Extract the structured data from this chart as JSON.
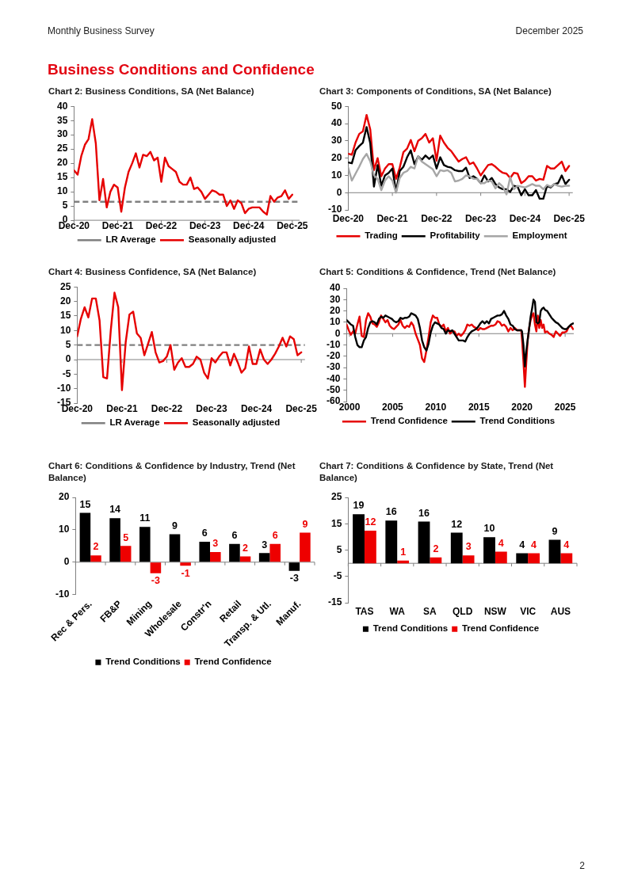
{
  "chart_data": [
    {
      "type": "line",
      "title": "Chart 2: Business Conditions, SA (Net Balance)",
      "annotations": [
        "Monthly Business Survey",
        "December 2025",
        "Business Conditions and Confidence"
      ],
      "x": [
        "2020-12",
        "2021-01",
        "2021-02",
        "2021-03",
        "2021-04",
        "2021-05",
        "2021-06",
        "2021-07",
        "2021-08",
        "2021-09",
        "2021-10",
        "2021-11",
        "2021-12",
        "2022-01",
        "2022-02",
        "2022-03",
        "2022-04",
        "2022-05",
        "2022-06",
        "2022-07",
        "2022-08",
        "2022-09",
        "2022-10",
        "2022-11",
        "2022-12",
        "2023-01",
        "2023-02",
        "2023-03",
        "2023-04",
        "2023-05",
        "2023-06",
        "2023-07",
        "2023-08",
        "2023-09",
        "2023-10",
        "2023-11",
        "2023-12",
        "2024-01",
        "2024-02",
        "2024-03",
        "2024-04",
        "2024-05",
        "2024-06",
        "2024-07",
        "2024-08",
        "2024-09",
        "2024-10",
        "2024-11",
        "2024-12",
        "2025-01",
        "2025-02",
        "2025-03",
        "2025-04",
        "2025-05",
        "2025-06",
        "2025-07",
        "2025-08",
        "2025-09",
        "2025-10",
        "2025-11",
        "2025-12"
      ],
      "xlim": [
        "2020-12",
        "2026-02"
      ],
      "xticks": [
        {
          "value": "2020-12",
          "label": "Dec-20"
        },
        {
          "value": "2021-12",
          "label": "Dec-21"
        },
        {
          "value": "2022-12",
          "label": "Dec-22"
        },
        {
          "value": "2023-12",
          "label": "Dec-23"
        },
        {
          "value": "2024-12",
          "label": "Dec-24"
        },
        {
          "value": "2025-12",
          "label": "Dec-25"
        }
      ],
      "ylim": [
        0,
        40
      ],
      "yticks": [
        0,
        5,
        10,
        15,
        20,
        25,
        30,
        35,
        40
      ],
      "series": [
        {
          "name": "Seasonally adjusted",
          "color": "#e60000",
          "values": [
            17.5,
            16,
            22.5,
            26.5,
            28.5,
            35.5,
            27,
            7,
            14.5,
            4.5,
            10,
            12.5,
            11.5,
            3,
            11.5,
            17,
            20,
            23.5,
            18.5,
            23,
            22.5,
            24,
            21,
            22,
            13.5,
            22,
            19,
            18,
            17,
            13.5,
            12.5,
            12.5,
            15,
            11,
            11.5,
            10,
            7.5,
            9,
            10.5,
            10,
            9,
            9,
            5,
            7,
            4,
            7,
            6,
            2.5,
            4,
            4.5,
            4.5,
            4.5,
            3,
            2,
            8.5,
            6.5,
            8,
            8.5,
            10.5,
            7.5,
            9
          ]
        }
      ],
      "ref_lines": [
        {
          "axis": "y",
          "value": 6.5,
          "label": "LR Average",
          "color": "#808080",
          "line_style": "dashed"
        }
      ],
      "legend": "bottom"
    },
    {
      "type": "line",
      "title": "Chart 3: Components of Conditions,  SA (Net Balance)",
      "x": [
        "2020-12",
        "2021-01",
        "2021-02",
        "2021-03",
        "2021-04",
        "2021-05",
        "2021-06",
        "2021-07",
        "2021-08",
        "2021-09",
        "2021-10",
        "2021-11",
        "2021-12",
        "2022-01",
        "2022-02",
        "2022-03",
        "2022-04",
        "2022-05",
        "2022-06",
        "2022-07",
        "2022-08",
        "2022-09",
        "2022-10",
        "2022-11",
        "2022-12",
        "2023-01",
        "2023-02",
        "2023-03",
        "2023-04",
        "2023-05",
        "2023-06",
        "2023-07",
        "2023-08",
        "2023-09",
        "2023-10",
        "2023-11",
        "2023-12",
        "2024-01",
        "2024-02",
        "2024-03",
        "2024-04",
        "2024-05",
        "2024-06",
        "2024-07",
        "2024-08",
        "2024-09",
        "2024-10",
        "2024-11",
        "2024-12",
        "2025-01",
        "2025-02",
        "2025-03",
        "2025-04",
        "2025-05",
        "2025-06",
        "2025-07",
        "2025-08",
        "2025-09",
        "2025-10",
        "2025-11",
        "2025-12"
      ],
      "xlim": [
        "2020-12",
        "2026-01"
      ],
      "xticks": [
        {
          "value": "2020-12",
          "label": "Dec-20"
        },
        {
          "value": "2021-12",
          "label": "Dec-21"
        },
        {
          "value": "2022-12",
          "label": "Dec-22"
        },
        {
          "value": "2023-12",
          "label": "Dec-23"
        },
        {
          "value": "2024-12",
          "label": "Dec-24"
        },
        {
          "value": "2025-12",
          "label": "Dec-25"
        }
      ],
      "ylim": [
        -10,
        50
      ],
      "yticks": [
        -10,
        0,
        10,
        20,
        30,
        40,
        50
      ],
      "series": [
        {
          "name": "Trading",
          "color": "#e60000",
          "values": [
            22.5,
            22,
            29,
            34,
            35.5,
            45,
            36.5,
            13,
            20,
            9.5,
            14,
            16.5,
            16.5,
            8,
            14.5,
            23.5,
            25.5,
            30.5,
            24,
            30,
            31.5,
            34,
            29,
            31.5,
            18.5,
            33,
            29,
            26,
            24,
            21,
            18,
            19.5,
            20.5,
            16.5,
            17.5,
            14,
            10,
            13,
            16,
            16.5,
            15,
            13,
            11.5,
            11,
            8.5,
            11.5,
            11,
            5.5,
            7,
            9.5,
            9.5,
            7,
            8,
            7.5,
            15.5,
            14,
            14,
            16,
            18,
            12.5,
            15.5
          ]
        },
        {
          "name": "Profitability",
          "color": "#000000",
          "values": [
            17.5,
            17,
            24.5,
            27,
            29,
            38,
            28.5,
            3.5,
            16,
            4,
            10,
            11.5,
            14,
            0.5,
            12.5,
            15,
            20.5,
            24.5,
            16.5,
            21,
            19,
            21.5,
            19.5,
            21.5,
            14,
            20.5,
            16,
            15,
            14.5,
            13,
            12.5,
            12.5,
            14.5,
            8.5,
            9.5,
            8,
            5.5,
            10,
            6.5,
            8.5,
            5,
            3,
            2,
            2,
            0.5,
            4,
            3.5,
            -1.5,
            2,
            -1.5,
            -1.5,
            1.5,
            -3.5,
            -3.5,
            4,
            3,
            5,
            5.5,
            10,
            5,
            7.5
          ]
        },
        {
          "name": "Employment",
          "color": "#a6a6a6",
          "values": [
            14.5,
            7,
            11,
            15,
            19.5,
            22.5,
            18,
            10,
            8,
            1.5,
            7,
            9.5,
            7,
            0,
            8.5,
            11.5,
            12.5,
            15,
            14,
            21,
            18,
            16.5,
            15,
            13.5,
            9.5,
            13,
            12.5,
            13,
            11.5,
            6.5,
            7,
            8,
            10,
            9.5,
            8,
            8,
            5.5,
            5.5,
            7,
            6.5,
            2.5,
            5.5,
            3.5,
            -1,
            9,
            2,
            4,
            3.5,
            3,
            4,
            5,
            4,
            4,
            2,
            4.5,
            3.5,
            5,
            4,
            3.5,
            4,
            4
          ]
        }
      ],
      "legend": "bottom"
    },
    {
      "type": "line",
      "title": "Chart 4: Business Confidence, SA (Net Balance)",
      "x": [
        "2020-12",
        "2021-01",
        "2021-02",
        "2021-03",
        "2021-04",
        "2021-05",
        "2021-06",
        "2021-07",
        "2021-08",
        "2021-09",
        "2021-10",
        "2021-11",
        "2021-12",
        "2022-01",
        "2022-02",
        "2022-03",
        "2022-04",
        "2022-05",
        "2022-06",
        "2022-07",
        "2022-08",
        "2022-09",
        "2022-10",
        "2022-11",
        "2022-12",
        "2023-01",
        "2023-02",
        "2023-03",
        "2023-04",
        "2023-05",
        "2023-06",
        "2023-07",
        "2023-08",
        "2023-09",
        "2023-10",
        "2023-11",
        "2023-12",
        "2024-01",
        "2024-02",
        "2024-03",
        "2024-04",
        "2024-05",
        "2024-06",
        "2024-07",
        "2024-08",
        "2024-09",
        "2024-10",
        "2024-11",
        "2024-12",
        "2025-01",
        "2025-02",
        "2025-03",
        "2025-04",
        "2025-05",
        "2025-06",
        "2025-07",
        "2025-08",
        "2025-09",
        "2025-10",
        "2025-11",
        "2025-12"
      ],
      "xlim": [
        "2020-12",
        "2026-01"
      ],
      "xticks": [
        {
          "value": "2020-12",
          "label": "Dec-20"
        },
        {
          "value": "2021-12",
          "label": "Dec-21"
        },
        {
          "value": "2022-12",
          "label": "Dec-22"
        },
        {
          "value": "2023-12",
          "label": "Dec-23"
        },
        {
          "value": "2024-12",
          "label": "Dec-24"
        },
        {
          "value": "2025-12",
          "label": "Dec-25"
        }
      ],
      "ylim": [
        -15,
        25
      ],
      "yticks": [
        -15,
        -10,
        -5,
        0,
        5,
        10,
        15,
        20,
        25
      ],
      "series": [
        {
          "name": "Seasonally adjusted",
          "color": "#e60000",
          "values": [
            8,
            14,
            18,
            14.5,
            21,
            21,
            13.5,
            -6,
            -6.5,
            10,
            23,
            18,
            -10.5,
            6,
            15.5,
            16.5,
            9,
            7.5,
            1.5,
            5.5,
            9.5,
            2.5,
            -1,
            -0.5,
            1,
            5,
            -3.5,
            -1,
            0.5,
            -2.5,
            -2.5,
            -1.5,
            1,
            0,
            -4.5,
            -6.5,
            0.5,
            -1,
            1,
            2.5,
            2.5,
            -2,
            2,
            -1,
            -4.5,
            -3,
            4.5,
            -1.5,
            -1.5,
            3.5,
            0,
            -1.5,
            0,
            2,
            4.5,
            7.5,
            4.5,
            8,
            7,
            1.5,
            2.5
          ]
        }
      ],
      "ref_lines": [
        {
          "axis": "y",
          "value": 5,
          "label": "LR Average",
          "color": "#808080",
          "line_style": "dashed"
        }
      ],
      "legend": "bottom"
    },
    {
      "type": "line",
      "title": "Chart 5: Conditions & Confidence, Trend (Net Balance)",
      "x": [
        "1999-09",
        "1999-12",
        "2000-03",
        "2000-06",
        "2000-09",
        "2000-12",
        "2001-03",
        "2001-06",
        "2001-09",
        "2001-12",
        "2002-03",
        "2002-06",
        "2002-09",
        "2002-12",
        "2003-03",
        "2003-06",
        "2003-09",
        "2003-12",
        "2004-03",
        "2004-06",
        "2004-09",
        "2004-12",
        "2005-03",
        "2005-06",
        "2005-09",
        "2005-12",
        "2006-03",
        "2006-06",
        "2006-09",
        "2006-12",
        "2007-03",
        "2007-06",
        "2007-09",
        "2007-12",
        "2008-03",
        "2008-06",
        "2008-09",
        "2008-12",
        "2009-03",
        "2009-06",
        "2009-09",
        "2009-12",
        "2010-03",
        "2010-06",
        "2010-09",
        "2010-12",
        "2011-03",
        "2011-06",
        "2011-09",
        "2011-12",
        "2012-03",
        "2012-06",
        "2012-09",
        "2012-12",
        "2013-03",
        "2013-06",
        "2013-09",
        "2013-12",
        "2014-03",
        "2014-06",
        "2014-09",
        "2014-12",
        "2015-03",
        "2015-06",
        "2015-09",
        "2015-12",
        "2016-03",
        "2016-06",
        "2016-09",
        "2016-12",
        "2017-03",
        "2017-06",
        "2017-09",
        "2017-12",
        "2018-03",
        "2018-06",
        "2018-09",
        "2018-12",
        "2019-03",
        "2019-06",
        "2019-09",
        "2019-12",
        "2020-01",
        "2020-03",
        "2020-05",
        "2020-07",
        "2020-09",
        "2020-11",
        "2021-01",
        "2021-03",
        "2021-05",
        "2021-07",
        "2021-09",
        "2021-11",
        "2022-01",
        "2022-03",
        "2022-05",
        "2022-07",
        "2022-09",
        "2022-12",
        "2023-03",
        "2023-06",
        "2023-09",
        "2023-12",
        "2024-03",
        "2024-06",
        "2024-09",
        "2024-12",
        "2025-03",
        "2025-06",
        "2025-09",
        "2025-12"
      ],
      "xlim": [
        "1999-09",
        "2026-01"
      ],
      "xticks": [
        "2000",
        "2005",
        "2010",
        "2015",
        "2020",
        "2025"
      ],
      "ylim": [
        -60,
        40
      ],
      "yticks": [
        -60,
        -50,
        -40,
        -30,
        -20,
        -10,
        0,
        10,
        20,
        30,
        40
      ],
      "series": [
        {
          "name": "Trend Confidence",
          "color": "#e60000",
          "values": [
            8,
            3,
            -1,
            2,
            0,
            8,
            15,
            -2,
            -3,
            12,
            18,
            15,
            9,
            8,
            6,
            10,
            16,
            13,
            10,
            12,
            7,
            5,
            4,
            6,
            8,
            12,
            7,
            5,
            7,
            6,
            10,
            7,
            0,
            -5,
            -10,
            -22,
            -25,
            -15,
            -3,
            10,
            16,
            14,
            14,
            8,
            6,
            8,
            2,
            5,
            0,
            2,
            2,
            -2,
            0,
            -2,
            0,
            3,
            8,
            7,
            8,
            6,
            5,
            3,
            5,
            4,
            4,
            5,
            6,
            7,
            7,
            8,
            11,
            10,
            7,
            8,
            6,
            2,
            5,
            3,
            5,
            3,
            3,
            3,
            -5,
            -25,
            -47,
            -25,
            -5,
            5,
            12,
            16,
            18,
            8,
            2,
            16,
            5,
            12,
            5,
            8,
            1,
            2,
            0,
            -1,
            -3,
            2,
            0,
            -2,
            1,
            1,
            2,
            6,
            7,
            4
          ]
        },
        {
          "name": "Trend Conditions",
          "color": "#000000",
          "values": [
            12,
            10,
            8,
            7,
            -3,
            -10,
            -12,
            -12,
            -6,
            -3,
            5,
            10,
            11,
            10,
            8,
            13,
            15,
            14,
            16,
            15,
            14,
            13,
            11,
            10,
            11,
            14,
            13,
            14,
            14,
            15,
            18,
            17,
            16,
            13,
            5,
            -6,
            -12,
            -15,
            -9,
            1,
            7,
            10,
            9,
            8,
            5,
            4,
            0,
            3,
            2,
            3,
            0,
            -3,
            -6,
            -6,
            -6,
            -7,
            -3,
            0,
            2,
            3,
            4,
            6,
            9,
            11,
            9,
            11,
            9,
            13,
            14,
            15,
            16,
            16,
            17,
            20,
            16,
            13,
            8,
            7,
            4,
            3,
            3,
            3,
            2,
            -10,
            -29,
            -15,
            -5,
            5,
            15,
            22,
            30,
            28,
            10,
            9,
            10,
            20,
            22,
            23,
            21,
            20,
            17,
            14,
            12,
            10,
            9,
            7,
            5,
            4,
            4,
            6,
            8,
            9
          ]
        }
      ],
      "legend": "bottom"
    },
    {
      "type": "bar",
      "title": "Chart 6: Conditions & Confidence by Industry, Trend (Net Balance)",
      "categories": [
        "Rec & Pers.",
        "FB&P",
        "Mining",
        "Wholesale",
        "Constr'n",
        "Retail",
        "Transp. & Utl.",
        "Manuf."
      ],
      "ylim": [
        -10,
        20
      ],
      "yticks": [
        -10,
        0,
        10,
        20
      ],
      "series": [
        {
          "name": "Trend Conditions",
          "color": "#000000",
          "values": [
            15.2,
            13.6,
            10.9,
            8.6,
            6.3,
            5.6,
            2.8,
            -2.7
          ],
          "value_labels": [
            "15",
            "14",
            "11",
            "9",
            "6",
            "6",
            "3",
            "-3"
          ]
        },
        {
          "name": "Trend Confidence",
          "color": "#ee0000",
          "values": [
            2.1,
            5,
            -3.4,
            -1.1,
            3.1,
            1.8,
            5.6,
            9.1
          ],
          "value_labels": [
            "2",
            "5",
            "-3",
            "-1",
            "3",
            "2",
            "6",
            "9"
          ]
        }
      ],
      "legend": "bottom"
    },
    {
      "type": "bar",
      "title": "Chart 7: Conditions & Confidence by State, Trend (Net Balance)",
      "annotations": [
        "2"
      ],
      "categories": [
        "TAS",
        "WA",
        "SA",
        "QLD",
        "NSW",
        "VIC",
        "AUS"
      ],
      "ylim": [
        -15,
        25
      ],
      "yticks": [
        -15,
        -5,
        5,
        15,
        25
      ],
      "series": [
        {
          "name": "Trend Conditions",
          "color": "#000000",
          "values": [
            18.6,
            16.2,
            15.8,
            11.6,
            9.9,
            3.8,
            8.9
          ],
          "value_labels": [
            "19",
            "16",
            "16",
            "12",
            "10",
            "4",
            "9"
          ]
        },
        {
          "name": "Trend Confidence",
          "color": "#ee0000",
          "values": [
            12.4,
            1,
            2.2,
            3,
            4.4,
            3.8,
            3.8
          ],
          "value_labels": [
            "12",
            "1",
            "2",
            "3",
            "4",
            "4",
            "4"
          ]
        }
      ],
      "legend": "bottom"
    }
  ]
}
